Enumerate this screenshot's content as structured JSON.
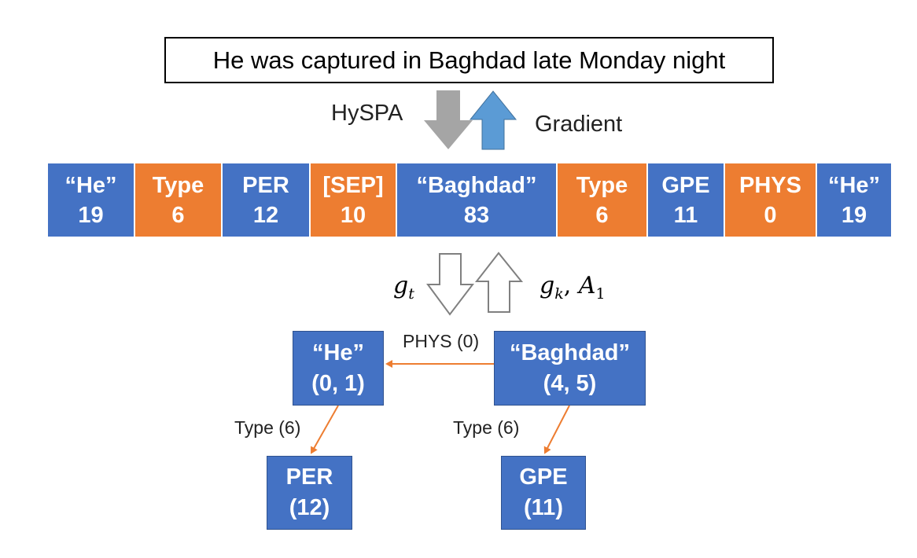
{
  "sentence": "He was captured in Baghdad late Monday night",
  "arrows": {
    "left_label": "HySPA",
    "right_label": "Gradient",
    "lower_left_label": {
      "var": "g",
      "sub": "t"
    },
    "lower_right_label": {
      "var1": "g",
      "sub1": "k",
      "sep": ", ",
      "var2": "A",
      "sub2": "1"
    }
  },
  "sequence": [
    {
      "text": "“He”",
      "id": "19",
      "kind": "blue"
    },
    {
      "text": "Type",
      "id": "6",
      "kind": "orange"
    },
    {
      "text": "PER",
      "id": "12",
      "kind": "blue"
    },
    {
      "text": "[SEP]",
      "id": "10",
      "kind": "orange"
    },
    {
      "text": "“Baghdad”",
      "id": "83",
      "kind": "blue"
    },
    {
      "text": "Type",
      "id": "6",
      "kind": "orange"
    },
    {
      "text": "GPE",
      "id": "11",
      "kind": "blue"
    },
    {
      "text": "PHYS",
      "id": "0",
      "kind": "orange"
    },
    {
      "text": "“He”",
      "id": "19",
      "kind": "blue"
    }
  ],
  "graph": {
    "nodes": {
      "he": {
        "line1": "“He”",
        "line2": "(0, 1)"
      },
      "baghdad": {
        "line1": "“Baghdad”",
        "line2": "(4, 5)"
      },
      "per": {
        "line1": "PER",
        "line2": "(12)"
      },
      "gpe": {
        "line1": "GPE",
        "line2": "(11)"
      }
    },
    "edges": {
      "phys": "PHYS (0)",
      "type_he": "Type (6)",
      "type_baghdad": "Type (6)"
    }
  },
  "colors": {
    "entity_blue": "#4472C4",
    "type_orange": "#ED7D31",
    "hyspa_arrow_gray": "#A5A5A5",
    "gradient_arrow_blue": "#5B9BD5",
    "edge_orange": "#ED7D31"
  }
}
